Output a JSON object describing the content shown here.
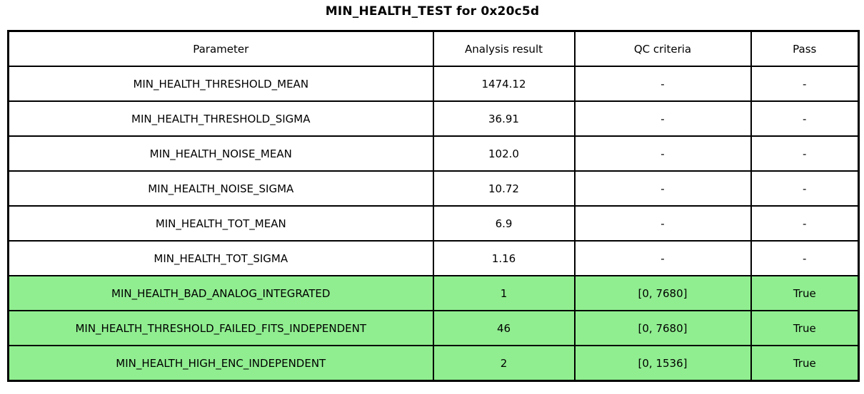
{
  "title": "MIN_HEALTH_TEST for 0x20c5d",
  "colors": {
    "pass_green": "#90EE90",
    "border": "#000000",
    "background": "#ffffff"
  },
  "table": {
    "headers": [
      "Parameter",
      "Analysis result",
      "QC criteria",
      "Pass"
    ],
    "rows": [
      {
        "parameter": "MIN_HEALTH_THRESHOLD_MEAN",
        "result": "1474.12",
        "qc": "-",
        "pass": "-",
        "highlight": false
      },
      {
        "parameter": "MIN_HEALTH_THRESHOLD_SIGMA",
        "result": "36.91",
        "qc": "-",
        "pass": "-",
        "highlight": false
      },
      {
        "parameter": "MIN_HEALTH_NOISE_MEAN",
        "result": "102.0",
        "qc": "-",
        "pass": "-",
        "highlight": false
      },
      {
        "parameter": "MIN_HEALTH_NOISE_SIGMA",
        "result": "10.72",
        "qc": "-",
        "pass": "-",
        "highlight": false
      },
      {
        "parameter": "MIN_HEALTH_TOT_MEAN",
        "result": "6.9",
        "qc": "-",
        "pass": "-",
        "highlight": false
      },
      {
        "parameter": "MIN_HEALTH_TOT_SIGMA",
        "result": "1.16",
        "qc": "-",
        "pass": "-",
        "highlight": false
      },
      {
        "parameter": "MIN_HEALTH_BAD_ANALOG_INTEGRATED",
        "result": "1",
        "qc": "[0, 7680]",
        "pass": "True",
        "highlight": true
      },
      {
        "parameter": "MIN_HEALTH_THRESHOLD_FAILED_FITS_INDEPENDENT",
        "result": "46",
        "qc": "[0, 7680]",
        "pass": "True",
        "highlight": true
      },
      {
        "parameter": "MIN_HEALTH_HIGH_ENC_INDEPENDENT",
        "result": "2",
        "qc": "[0, 1536]",
        "pass": "True",
        "highlight": true
      }
    ]
  },
  "chart_data": {
    "type": "table",
    "title": "MIN_HEALTH_TEST for 0x20c5d",
    "columns": [
      "Parameter",
      "Analysis result",
      "QC criteria",
      "Pass"
    ],
    "rows": [
      [
        "MIN_HEALTH_THRESHOLD_MEAN",
        "1474.12",
        "-",
        "-"
      ],
      [
        "MIN_HEALTH_THRESHOLD_SIGMA",
        "36.91",
        "-",
        "-"
      ],
      [
        "MIN_HEALTH_NOISE_MEAN",
        "102.0",
        "-",
        "-"
      ],
      [
        "MIN_HEALTH_NOISE_SIGMA",
        "10.72",
        "-",
        "-"
      ],
      [
        "MIN_HEALTH_TOT_MEAN",
        "6.9",
        "-",
        "-"
      ],
      [
        "MIN_HEALTH_TOT_SIGMA",
        "1.16",
        "-",
        "-"
      ],
      [
        "MIN_HEALTH_BAD_ANALOG_INTEGRATED",
        "1",
        "[0, 7680]",
        "True"
      ],
      [
        "MIN_HEALTH_THRESHOLD_FAILED_FITS_INDEPENDENT",
        "46",
        "[0, 7680]",
        "True"
      ],
      [
        "MIN_HEALTH_HIGH_ENC_INDEPENDENT",
        "2",
        "[0, 1536]",
        "True"
      ]
    ],
    "highlighted_rows": [
      6,
      7,
      8
    ],
    "highlight_color": "#90EE90",
    "layout_hints": {
      "grid": true,
      "header_row": true,
      "cell_text_align": "center"
    }
  }
}
